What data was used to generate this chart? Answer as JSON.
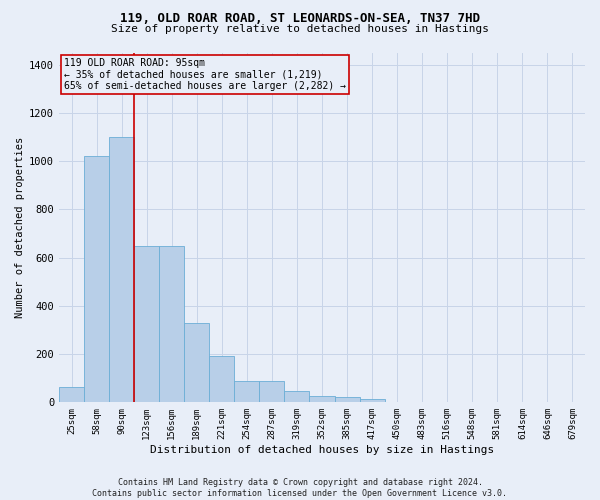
{
  "title_line1": "119, OLD ROAR ROAD, ST LEONARDS-ON-SEA, TN37 7HD",
  "title_line2": "Size of property relative to detached houses in Hastings",
  "xlabel": "Distribution of detached houses by size in Hastings",
  "ylabel": "Number of detached properties",
  "footer_line1": "Contains HM Land Registry data © Crown copyright and database right 2024.",
  "footer_line2": "Contains public sector information licensed under the Open Government Licence v3.0.",
  "bar_labels": [
    "25sqm",
    "58sqm",
    "90sqm",
    "123sqm",
    "156sqm",
    "189sqm",
    "221sqm",
    "254sqm",
    "287sqm",
    "319sqm",
    "352sqm",
    "385sqm",
    "417sqm",
    "450sqm",
    "483sqm",
    "516sqm",
    "548sqm",
    "581sqm",
    "614sqm",
    "646sqm",
    "679sqm"
  ],
  "bar_values": [
    62,
    1020,
    1100,
    650,
    650,
    330,
    190,
    90,
    90,
    45,
    28,
    22,
    14,
    0,
    0,
    0,
    0,
    0,
    0,
    0,
    0
  ],
  "bar_color": "#b8cfe8",
  "bar_edge_color": "#6baed6",
  "grid_color": "#c8d4e8",
  "background_color": "#e8eef8",
  "vline_x_index": 2,
  "vline_color": "#cc0000",
  "annotation_text_line1": "119 OLD ROAR ROAD: 95sqm",
  "annotation_text_line2": "← 35% of detached houses are smaller (1,219)",
  "annotation_text_line3": "65% of semi-detached houses are larger (2,282) →",
  "annotation_box_color": "#cc0000",
  "ylim": [
    0,
    1450
  ],
  "yticks": [
    0,
    200,
    400,
    600,
    800,
    1000,
    1200,
    1400
  ],
  "title_fontsize": 9,
  "subtitle_fontsize": 8,
  "xlabel_fontsize": 8,
  "ylabel_fontsize": 7.5,
  "xtick_fontsize": 6.5,
  "ytick_fontsize": 7.5,
  "annotation_fontsize": 7,
  "footer_fontsize": 6
}
